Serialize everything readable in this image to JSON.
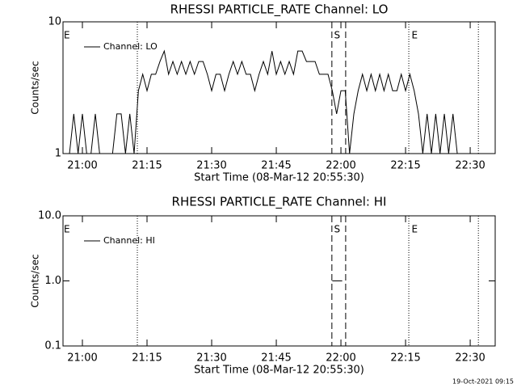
{
  "chart_data": [
    {
      "type": "line",
      "title": "RHESSI PARTICLE_RATE Channel: LO",
      "xlabel": "Start Time (08-Mar-12 20:55:30)",
      "ylabel": "Counts/sec",
      "log_y": true,
      "legend": "upper left",
      "color": "#000000",
      "xlim": [
        1255.5,
        1355.8
      ],
      "xticks": [
        {
          "value": 1260,
          "label": "21:00"
        },
        {
          "value": 1275,
          "label": "21:15"
        },
        {
          "value": 1290,
          "label": "21:30"
        },
        {
          "value": 1305,
          "label": "21:45"
        },
        {
          "value": 1320,
          "label": "22:00"
        },
        {
          "value": 1335,
          "label": "22:15"
        },
        {
          "value": 1350,
          "label": "22:30"
        }
      ],
      "ylim": [
        1,
        10
      ],
      "yticks": [
        1,
        10
      ],
      "event_lines": [
        {
          "x": 1272.75,
          "style": "dotted"
        },
        {
          "x": 1317.9,
          "style": "dashed"
        },
        {
          "x": 1321.1,
          "style": "dashed"
        },
        {
          "x": 1335.75,
          "style": "dotted"
        },
        {
          "x": 1351.9,
          "style": "dotted"
        }
      ],
      "event_labels": [
        {
          "label": "E",
          "x": 1255.5
        },
        {
          "label": "S",
          "x": 1318.2
        },
        {
          "label": "E",
          "x": 1336.2
        }
      ],
      "series": [
        {
          "name": "Channel: LO",
          "color": "#000000",
          "x": [
            1256,
            1257,
            1258,
            1259,
            1260,
            1261,
            1262,
            1263,
            1264,
            1265,
            1266,
            1267,
            1268,
            1269,
            1270,
            1271,
            1272,
            1273,
            1274,
            1275,
            1276,
            1277,
            1278,
            1279,
            1280,
            1281,
            1282,
            1283,
            1284,
            1285,
            1286,
            1287,
            1288,
            1289,
            1290,
            1291,
            1292,
            1293,
            1294,
            1295,
            1296,
            1297,
            1298,
            1299,
            1300,
            1301,
            1302,
            1303,
            1304,
            1305,
            1306,
            1307,
            1308,
            1309,
            1310,
            1311,
            1312,
            1313,
            1314,
            1315,
            1316,
            1317,
            1318,
            1319,
            1320,
            1321,
            1322,
            1323,
            1324,
            1325,
            1326,
            1327,
            1328,
            1329,
            1330,
            1331,
            1332,
            1333,
            1334,
            1335,
            1336,
            1337,
            1338,
            1339,
            1340,
            1341,
            1342,
            1343,
            1344,
            1345,
            1346,
            1347
          ],
          "values": [
            1,
            1,
            2,
            1,
            2,
            1,
            1,
            2,
            1,
            1,
            1,
            1,
            2,
            2,
            1,
            2,
            1,
            3,
            4,
            3,
            4,
            4,
            5,
            6,
            4,
            5,
            4,
            5,
            4,
            5,
            4,
            5,
            5,
            4,
            3,
            4,
            4,
            3,
            4,
            5,
            4,
            5,
            4,
            4,
            3,
            4,
            5,
            4,
            6,
            4,
            5,
            4,
            5,
            4,
            6,
            6,
            5,
            5,
            5,
            4,
            4,
            4,
            3,
            2,
            3,
            3,
            1,
            2,
            3,
            4,
            3,
            4,
            3,
            4,
            3,
            4,
            3,
            3,
            4,
            3,
            4,
            3,
            2,
            1,
            2,
            1,
            2,
            1,
            2,
            1,
            2,
            1
          ]
        }
      ]
    },
    {
      "type": "line",
      "title": "RHESSI PARTICLE_RATE Channel: HI",
      "xlabel": "Start Time (08-Mar-12 20:55:30)",
      "ylabel": "Counts/sec",
      "log_y": true,
      "legend": "upper left",
      "color": "#000000",
      "xlim": [
        1255.5,
        1355.8
      ],
      "xticks": [
        {
          "value": 1260,
          "label": "21:00"
        },
        {
          "value": 1275,
          "label": "21:15"
        },
        {
          "value": 1290,
          "label": "21:30"
        },
        {
          "value": 1305,
          "label": "21:45"
        },
        {
          "value": 1320,
          "label": "22:00"
        },
        {
          "value": 1335,
          "label": "22:15"
        },
        {
          "value": 1350,
          "label": "22:30"
        }
      ],
      "ylim": [
        0.1,
        10
      ],
      "yticks": [
        0.1,
        {
          "value": 1,
          "label": "1.0"
        },
        {
          "value": 10,
          "label": "10.0"
        }
      ],
      "event_lines": [
        {
          "x": 1272.75,
          "style": "dotted"
        },
        {
          "x": 1317.9,
          "style": "dashed"
        },
        {
          "x": 1321.1,
          "style": "dashed"
        },
        {
          "x": 1335.75,
          "style": "dotted"
        },
        {
          "x": 1351.9,
          "style": "dotted"
        }
      ],
      "event_labels": [
        {
          "label": "E",
          "x": 1255.5
        },
        {
          "label": "S",
          "x": 1318.2
        },
        {
          "label": "E",
          "x": 1336.2
        }
      ],
      "series": [
        {
          "name": "Channel: HI",
          "color": "#000000",
          "x": [
            1318,
            1320.3
          ],
          "values": [
            1,
            1
          ]
        }
      ]
    }
  ],
  "footer": "19-Oct-2021 09:15"
}
